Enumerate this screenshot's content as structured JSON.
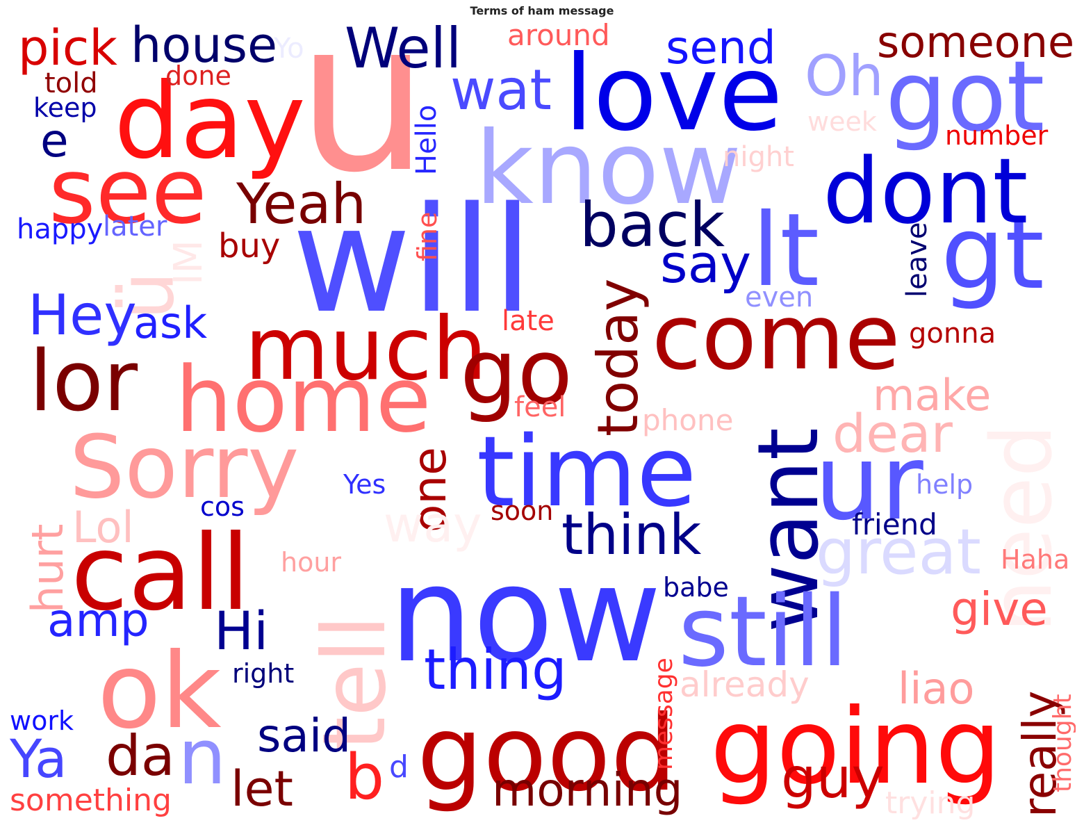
{
  "title": "Terms of ham message",
  "words": [
    {
      "text": "u",
      "color": "#ff8f8f"
    },
    {
      "text": "will",
      "color": "#4f4fff"
    },
    {
      "text": "now",
      "color": "#3a3aff"
    },
    {
      "text": "day",
      "color": "#ff1010"
    },
    {
      "text": "love",
      "color": "#0000e8"
    },
    {
      "text": "know",
      "color": "#a8a8ff"
    },
    {
      "text": "got",
      "color": "#6a6aff"
    },
    {
      "text": "see",
      "color": "#ff2a2a"
    },
    {
      "text": "lt",
      "color": "#5c5cff"
    },
    {
      "text": "gt",
      "color": "#5050ff"
    },
    {
      "text": "dont",
      "color": "#0000d8"
    },
    {
      "text": "come",
      "color": "#aa0000"
    },
    {
      "text": "good",
      "color": "#bb0000"
    },
    {
      "text": "going",
      "color": "#ff0a0a"
    },
    {
      "text": "time",
      "color": "#3838ff"
    },
    {
      "text": "ur",
      "color": "#5858ff"
    },
    {
      "text": "want",
      "color": "#000090"
    },
    {
      "text": "ok",
      "color": "#ff8888"
    },
    {
      "text": "call",
      "color": "#c80000"
    },
    {
      "text": "home",
      "color": "#ff7070"
    },
    {
      "text": "Sorry",
      "color": "#ff9a9a"
    },
    {
      "text": "much",
      "color": "#cc0000"
    },
    {
      "text": "go",
      "color": "#a00000"
    },
    {
      "text": "still",
      "color": "#6a6aff"
    },
    {
      "text": "tell",
      "color": "#ffc8c8"
    },
    {
      "text": "lor",
      "color": "#7a0000"
    },
    {
      "text": "need",
      "color": "#fff0f0"
    },
    {
      "text": "ü",
      "color": "#ffd6d6"
    },
    {
      "text": "Well",
      "color": "#00007a"
    },
    {
      "text": "pick",
      "color": "#d80000"
    },
    {
      "text": "house",
      "color": "#00006a"
    },
    {
      "text": "Yo",
      "color": "#ececff"
    },
    {
      "text": "around",
      "color": "#ff5a5a"
    },
    {
      "text": "send",
      "color": "#1414ff"
    },
    {
      "text": "Oh",
      "color": "#a0a0ff"
    },
    {
      "text": "someone",
      "color": "#880000"
    },
    {
      "text": "told",
      "color": "#900000"
    },
    {
      "text": "done",
      "color": "#dd2020"
    },
    {
      "text": "keep",
      "color": "#0000a8"
    },
    {
      "text": "e",
      "color": "#000080"
    },
    {
      "text": "wat",
      "color": "#4a4aff"
    },
    {
      "text": "Hello",
      "color": "#2626ff"
    },
    {
      "text": "week",
      "color": "#ffdcdc"
    },
    {
      "text": "number",
      "color": "#ee0000"
    },
    {
      "text": "night",
      "color": "#ffd0d0"
    },
    {
      "text": "Yeah",
      "color": "#780000"
    },
    {
      "text": "back",
      "color": "#000060"
    },
    {
      "text": "say",
      "color": "#0000c8"
    },
    {
      "text": "happy",
      "color": "#1a1aff"
    },
    {
      "text": "later",
      "color": "#6464ff"
    },
    {
      "text": "IM",
      "color": "#ffe8e8"
    },
    {
      "text": "buy",
      "color": "#a80000"
    },
    {
      "text": "fine",
      "color": "#ff5050"
    },
    {
      "text": "today",
      "color": "#800000"
    },
    {
      "text": "leave",
      "color": "#000070"
    },
    {
      "text": "even",
      "color": "#9090ff"
    },
    {
      "text": "Hey",
      "color": "#3030ff"
    },
    {
      "text": "ask",
      "color": "#2020ff"
    },
    {
      "text": "late",
      "color": "#ff3a3a"
    },
    {
      "text": "gonna",
      "color": "#b40000"
    },
    {
      "text": "make",
      "color": "#ffa8a8"
    },
    {
      "text": "feel",
      "color": "#ff6464"
    },
    {
      "text": "phone",
      "color": "#ffc0c0"
    },
    {
      "text": "dear",
      "color": "#ffb4b4"
    },
    {
      "text": "one",
      "color": "#a80000"
    },
    {
      "text": "Lol",
      "color": "#ffc0c0"
    },
    {
      "text": "hurt",
      "color": "#ffa0a0"
    },
    {
      "text": "Yes",
      "color": "#3030ff"
    },
    {
      "text": "cos",
      "color": "#0000cc"
    },
    {
      "text": "way",
      "color": "#fff0f0"
    },
    {
      "text": "soon",
      "color": "#a40000"
    },
    {
      "text": "think",
      "color": "#000088"
    },
    {
      "text": "help",
      "color": "#8080ff"
    },
    {
      "text": "friend",
      "color": "#000088"
    },
    {
      "text": "great",
      "color": "#dadaff"
    },
    {
      "text": "Haha",
      "color": "#ff7878"
    },
    {
      "text": "hour",
      "color": "#ffa0a0"
    },
    {
      "text": "babe",
      "color": "#000090"
    },
    {
      "text": "amp",
      "color": "#2424ff"
    },
    {
      "text": "Hi",
      "color": "#000090"
    },
    {
      "text": "give",
      "color": "#ff5a5a"
    },
    {
      "text": "thing",
      "color": "#1c1cff"
    },
    {
      "text": "right",
      "color": "#00007a"
    },
    {
      "text": "message",
      "color": "#ff3030"
    },
    {
      "text": "already",
      "color": "#ffcccc"
    },
    {
      "text": "liao",
      "color": "#ff9c9c"
    },
    {
      "text": "really",
      "color": "#8a0000"
    },
    {
      "text": "thought",
      "color": "#ff6a6a"
    },
    {
      "text": "work",
      "color": "#1010ff"
    },
    {
      "text": "said",
      "color": "#000080"
    },
    {
      "text": "Ya",
      "color": "#4646ff"
    },
    {
      "text": "da",
      "color": "#7a0000"
    },
    {
      "text": "n",
      "color": "#9090ff"
    },
    {
      "text": "let",
      "color": "#7a0000"
    },
    {
      "text": "b",
      "color": "#ff2020"
    },
    {
      "text": "d",
      "color": "#4848ff"
    },
    {
      "text": "morning",
      "color": "#780000"
    },
    {
      "text": "guy",
      "color": "#cc0000"
    },
    {
      "text": "trying",
      "color": "#ffe0e0"
    },
    {
      "text": "something",
      "color": "#ff4040"
    }
  ]
}
